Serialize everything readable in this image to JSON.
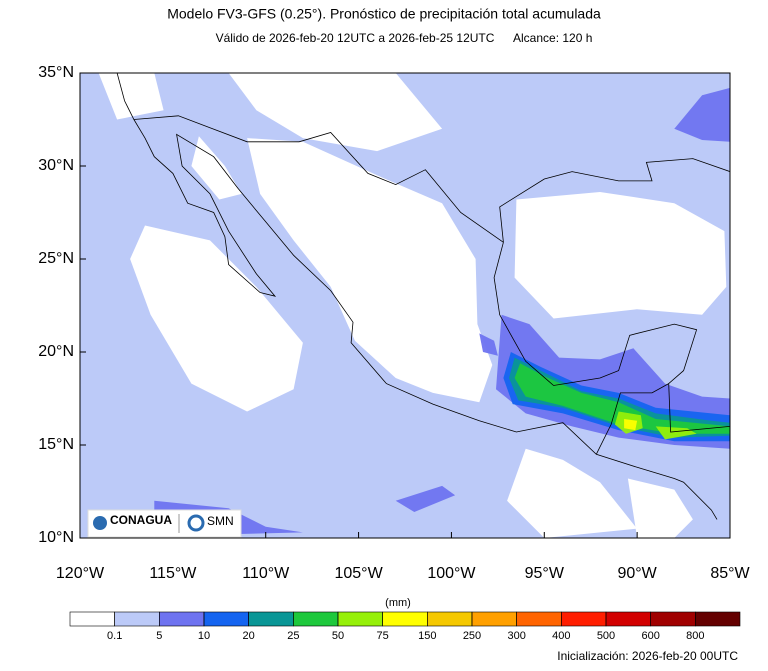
{
  "title": "Modelo FV3-GFS (0.25°). Pronóstico de precipitación total acumulada",
  "subtitle": "Válido de 2026-feb-20 12UTC a 2026-feb-25 12UTC",
  "range_label": "Alcance: 120 h",
  "map": {
    "xlim": [
      -120,
      -85
    ],
    "ylim": [
      10,
      35
    ],
    "xticks": [
      {
        "value": -120,
        "label": "120°W"
      },
      {
        "value": -115,
        "label": "115°W"
      },
      {
        "value": -110,
        "label": "110°W"
      },
      {
        "value": -105,
        "label": "105°W"
      },
      {
        "value": -100,
        "label": "100°W"
      },
      {
        "value": -95,
        "label": "95°W"
      },
      {
        "value": -90,
        "label": "90°W"
      },
      {
        "value": -85,
        "label": "85°W"
      }
    ],
    "yticks": [
      {
        "value": 10,
        "label": "10°N"
      },
      {
        "value": 15,
        "label": "15°N"
      },
      {
        "value": 20,
        "label": "20°N"
      },
      {
        "value": 25,
        "label": "25°N"
      },
      {
        "value": 30,
        "label": "30°N"
      },
      {
        "value": 35,
        "label": "35°N"
      }
    ]
  },
  "logos": [
    "CONAGUA",
    "SMN"
  ],
  "colorbar": {
    "unit": "(mm)",
    "levels": [
      0.1,
      5,
      10,
      20,
      25,
      50,
      75,
      150,
      250,
      300,
      400,
      500,
      600,
      800
    ],
    "colors": [
      "#ffffff",
      "#bccaf8",
      "#6e73f0",
      "#1464f0",
      "#0a9696",
      "#1ec83c",
      "#96f00a",
      "#ffff00",
      "#f5c800",
      "#ffa000",
      "#ff6400",
      "#ff1e00",
      "#d20000",
      "#a00000",
      "#640000"
    ]
  },
  "footer": "Inicialización: 2026-feb-20 00UTC"
}
